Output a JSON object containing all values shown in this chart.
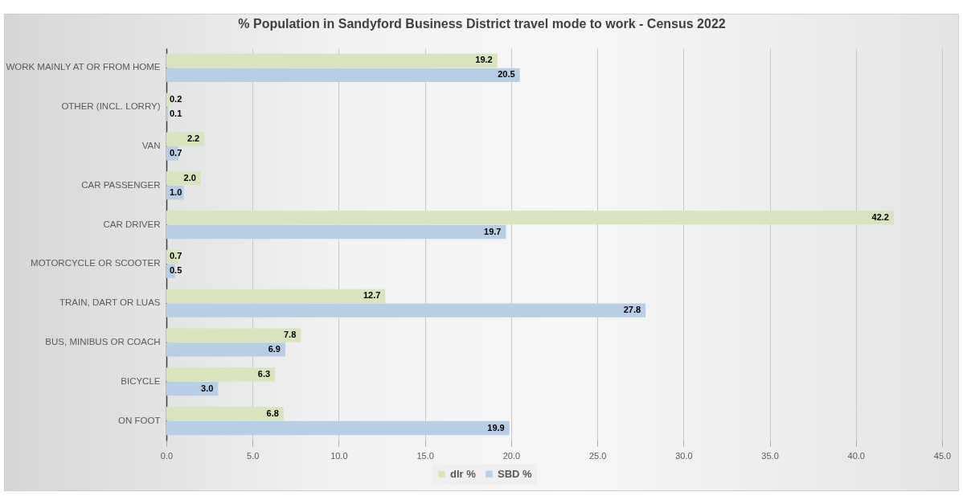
{
  "chart_data": {
    "type": "bar",
    "orientation": "horizontal",
    "title": "% Population in Sandyford Business District travel mode to work - Census 2022",
    "categories": [
      "WORK MAINLY AT OR FROM HOME",
      "OTHER (INCL. LORRY)",
      "VAN",
      "CAR PASSENGER",
      "CAR DRIVER",
      "MOTORCYCLE OR SCOOTER",
      "TRAIN, DART OR LUAS",
      "BUS, MINIBUS OR COACH",
      "BICYCLE",
      "ON FOOT"
    ],
    "series": [
      {
        "name": "dlr %",
        "color": "#d7e4bd",
        "values": [
          19.2,
          0.2,
          2.2,
          2.0,
          42.2,
          0.7,
          12.7,
          7.8,
          6.3,
          6.8
        ],
        "value_labels": [
          "19.2",
          "0.2",
          "2.2",
          "2.0",
          "42.2",
          "0.7",
          "12.7",
          "7.8",
          "6.3",
          "6.8"
        ]
      },
      {
        "name": "SBD %",
        "color": "#b9cde5",
        "values": [
          20.5,
          0.1,
          0.7,
          1.0,
          19.7,
          0.5,
          27.8,
          6.9,
          3.0,
          19.9
        ],
        "value_labels": [
          "20.5",
          "0.1",
          "0.7",
          "1.0",
          "19.7",
          "0.5",
          "27.8",
          "6.9",
          "3.0",
          "19.9"
        ]
      }
    ],
    "xlim": [
      0,
      45
    ],
    "xticks": [
      {
        "value": 0,
        "label": "0.0"
      },
      {
        "value": 5,
        "label": "5.0"
      },
      {
        "value": 10,
        "label": "10.0"
      },
      {
        "value": 15,
        "label": "15.0"
      },
      {
        "value": 20,
        "label": "20.0"
      },
      {
        "value": 25,
        "label": "25.0"
      },
      {
        "value": 30,
        "label": "30.0"
      },
      {
        "value": 35,
        "label": "35.0"
      },
      {
        "value": 40,
        "label": "40.0"
      },
      {
        "value": 45,
        "label": "45.0"
      }
    ],
    "grid": "x",
    "legend": "bottom"
  }
}
